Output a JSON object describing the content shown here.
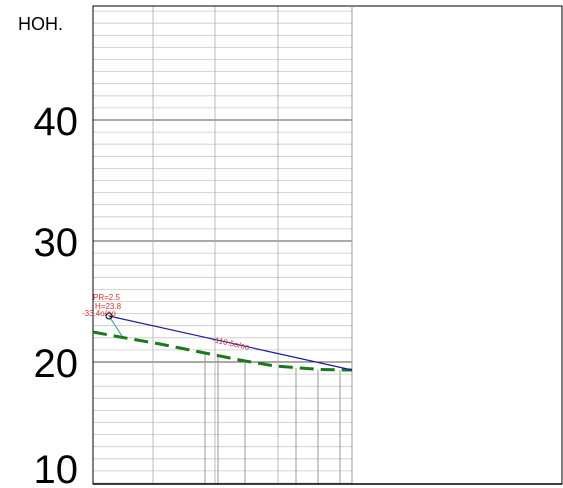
{
  "profile": {
    "unit_label": "НОН.",
    "elevation_labels": [
      "40",
      "30",
      "20",
      "10"
    ],
    "annotations": {
      "pr_label": "PR=2.5",
      "h_label": "H=23.8",
      "left_grade": "-33.4o/oo",
      "main_grade": "-110.5o/oo"
    },
    "colors": {
      "design_line": "#1a1aa0",
      "ground_line": "#1a7a1a",
      "annotation": "#cc3333",
      "grid": "#999999",
      "border": "#000000"
    }
  }
}
